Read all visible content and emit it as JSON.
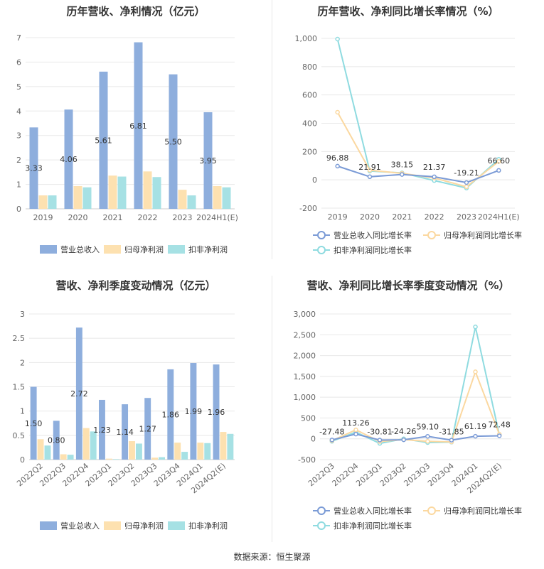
{
  "source_label": "数据来源：恒生聚源",
  "colors": {
    "revenue": "#8eaedd",
    "net_profit": "#fde1b0",
    "deducted_profit": "#a6e1e4",
    "revenue_line": "#7b9bd6",
    "net_line": "#fbd8a0",
    "deducted_line": "#8fdbe0",
    "grid": "#e8e8e8",
    "axis_text": "#666666"
  },
  "chart_data": [
    {
      "id": "annual_bar",
      "type": "bar",
      "title": "历年营收、净利情况（亿元）",
      "categories": [
        "2019",
        "2020",
        "2021",
        "2022",
        "2023",
        "2024H1(E)"
      ],
      "series": [
        {
          "name": "营业总收入",
          "values": [
            3.33,
            4.06,
            5.61,
            6.81,
            5.5,
            3.95
          ]
        },
        {
          "name": "归母净利润",
          "values": [
            0.55,
            0.93,
            1.36,
            1.53,
            0.78,
            0.93
          ]
        },
        {
          "name": "扣非净利润",
          "values": [
            0.55,
            0.88,
            1.32,
            1.3,
            0.55,
            0.88
          ]
        }
      ],
      "data_labels": [
        "3.33",
        "4.06",
        "5.61",
        "6.81",
        "5.50",
        "3.95"
      ],
      "ylim": [
        0,
        7
      ],
      "yticks": [
        "0",
        "1",
        "2",
        "3",
        "4",
        "5",
        "6",
        "7"
      ],
      "grid": true,
      "legend_position": "bottom"
    },
    {
      "id": "annual_growth",
      "type": "line",
      "title": "历年营收、净利同比增长率情况（%）",
      "categories": [
        "2019",
        "2020",
        "2021",
        "2022",
        "2023",
        "2024H1(E)"
      ],
      "series": [
        {
          "name": "营业总收入同比增长率",
          "values": [
            96.88,
            21.91,
            38.15,
            21.37,
            -19.21,
            66.6
          ]
        },
        {
          "name": "归母净利润同比增长率",
          "values": [
            478,
            68,
            46,
            13,
            -49,
            130
          ]
        },
        {
          "name": "扣非净利润同比增长率",
          "values": [
            995,
            62,
            49,
            -5,
            -58,
            145
          ]
        }
      ],
      "data_labels": [
        "96.88",
        "21.91",
        "38.15",
        "21.37",
        "-19.21",
        "66.60"
      ],
      "ylim": [
        -200,
        1000
      ],
      "yticks": [
        "-200",
        "0",
        "200",
        "400",
        "600",
        "800",
        "1,000"
      ],
      "grid": true,
      "legend_position": "bottom"
    },
    {
      "id": "quarterly_bar",
      "type": "bar",
      "title": "营收、净利季度变动情况（亿元）",
      "categories": [
        "2022Q2",
        "2022Q3",
        "2022Q4",
        "2023Q1",
        "2023Q2",
        "2023Q3",
        "2023Q4",
        "2024Q1",
        "2024Q2(E)"
      ],
      "series": [
        {
          "name": "营业总收入",
          "values": [
            1.5,
            0.8,
            2.72,
            1.23,
            1.14,
            1.27,
            1.86,
            1.99,
            1.96
          ]
        },
        {
          "name": "归母净利润",
          "values": [
            0.42,
            0.11,
            0.65,
            0.02,
            0.38,
            0.04,
            0.35,
            0.35,
            0.57
          ]
        },
        {
          "name": "扣非净利润",
          "values": [
            0.29,
            0.1,
            0.58,
            0.01,
            0.33,
            0.05,
            0.16,
            0.34,
            0.53
          ]
        }
      ],
      "data_labels": [
        "1.50",
        "0.80",
        "2.72",
        "1.23",
        "1.14",
        "1.27",
        "1.86",
        "1.99",
        "1.96"
      ],
      "ylim": [
        0,
        3
      ],
      "yticks": [
        "0",
        "0.5",
        "1",
        "1.5",
        "2",
        "2.5",
        "3"
      ],
      "grid": true,
      "legend_position": "bottom"
    },
    {
      "id": "quarterly_growth",
      "type": "line",
      "title": "营收、净利同比增长率季度变动情况（%）",
      "categories": [
        "2022Q3",
        "2022Q4",
        "2023Q1",
        "2023Q2",
        "2023Q3",
        "2023Q4",
        "2024Q1",
        "2024Q2(E)"
      ],
      "series": [
        {
          "name": "营业总收入同比增长率",
          "values": [
            -27.48,
            113.26,
            -30.81,
            -24.26,
            59.1,
            -31.85,
            61.19,
            72.48
          ]
        },
        {
          "name": "归母净利润同比增长率",
          "values": [
            -45,
            215,
            -65,
            -20,
            -60,
            -75,
            1610,
            110
          ]
        },
        {
          "name": "扣非净利润同比增长率",
          "values": [
            -60,
            160,
            -110,
            0,
            -90,
            -80,
            2690,
            95
          ]
        }
      ],
      "data_labels": [
        "-27.48",
        "113.26",
        "-30.81",
        "-24.26",
        "59.10",
        "-31.85",
        "61.19",
        "72.48"
      ],
      "ylim": [
        -500,
        3000
      ],
      "yticks": [
        "-500",
        "0",
        "500",
        "1,000",
        "1,500",
        "2,000",
        "2,500",
        "3,000"
      ],
      "grid": true,
      "legend_position": "bottom"
    }
  ]
}
